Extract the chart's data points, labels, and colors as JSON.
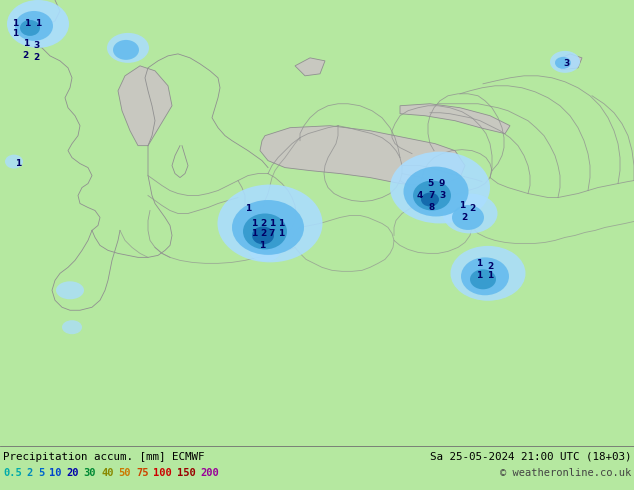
{
  "title_left": "Precipitation accum. [mm] ECMWF",
  "title_right": "Sa 25-05-2024 21:00 UTC (18+03)",
  "copyright": "© weatheronline.co.uk",
  "legend_values": [
    "0.5",
    "2",
    "5",
    "10",
    "20",
    "30",
    "40",
    "50",
    "75",
    "100",
    "150",
    "200"
  ],
  "legend_text_colors": [
    "#00aaaa",
    "#0088bb",
    "#0066cc",
    "#0044cc",
    "#0000aa",
    "#008833",
    "#888800",
    "#cc7700",
    "#cc4400",
    "#cc0000",
    "#990000",
    "#990099"
  ],
  "land_color": "#b5e8a0",
  "sea_color": "#c8c8c0",
  "border_color": "#909090",
  "precip_light": "#aaddff",
  "precip_mid": "#66bbee",
  "precip_dark": "#3399cc",
  "precip_darkest": "#1166aa",
  "number_color": "#000066",
  "bottom_bg": "#d0f0c0",
  "fig_width": 6.34,
  "fig_height": 4.9,
  "annotations_center": [
    [
      248,
      237,
      "1"
    ],
    [
      254,
      222,
      "1"
    ],
    [
      263,
      222,
      "2"
    ],
    [
      272,
      222,
      "1"
    ],
    [
      281,
      222,
      "1"
    ],
    [
      254,
      212,
      "1"
    ],
    [
      263,
      212,
      "2"
    ],
    [
      272,
      212,
      "7"
    ],
    [
      281,
      212,
      "1"
    ],
    [
      262,
      200,
      "1"
    ]
  ],
  "annotations_east_main": [
    [
      430,
      262,
      "5"
    ],
    [
      442,
      262,
      "9"
    ],
    [
      420,
      250,
      "4"
    ],
    [
      432,
      250,
      "7"
    ],
    [
      443,
      250,
      "3"
    ],
    [
      432,
      238,
      "8"
    ]
  ],
  "annotations_east_right": [
    [
      462,
      240,
      "1"
    ],
    [
      472,
      237,
      "2"
    ],
    [
      464,
      228,
      "2"
    ]
  ],
  "annotations_se": [
    [
      479,
      182,
      "1"
    ],
    [
      490,
      179,
      "2"
    ],
    [
      479,
      170,
      "1"
    ],
    [
      490,
      170,
      "1"
    ]
  ],
  "annotations_topleft": [
    [
      15,
      422,
      "1"
    ],
    [
      27,
      422,
      "1"
    ],
    [
      38,
      422,
      "1"
    ],
    [
      15,
      412,
      "1"
    ],
    [
      26,
      402,
      "1"
    ],
    [
      36,
      400,
      "3"
    ],
    [
      25,
      390,
      "2"
    ],
    [
      36,
      388,
      "2"
    ]
  ],
  "annotations_misc": [
    [
      18,
      282,
      "1"
    ],
    [
      567,
      382,
      "3"
    ]
  ]
}
